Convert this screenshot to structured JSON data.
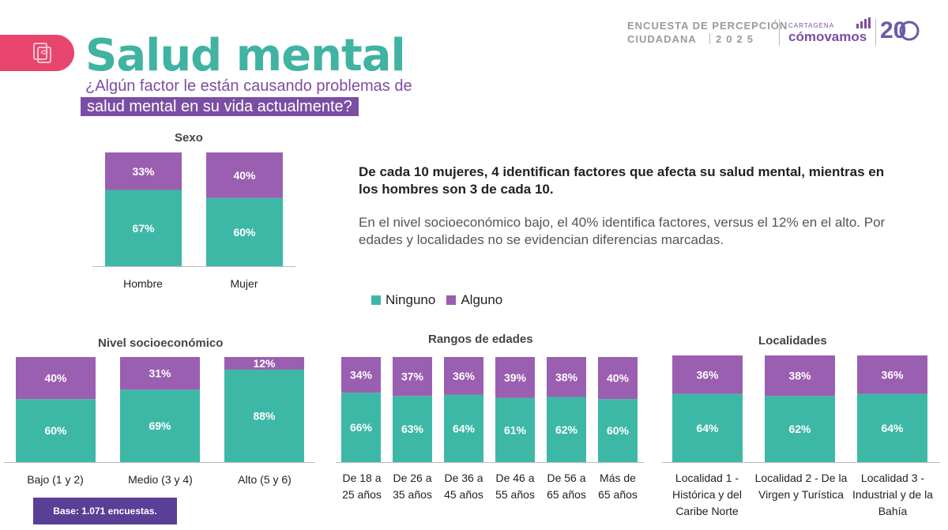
{
  "header": {
    "title": "Salud mental",
    "question_line1": "¿Algún factor le están causando problemas de",
    "question_line2": "salud mental en su vida actualmente?",
    "survey_line1": "ENCUESTA DE PERCEPCIÓN",
    "survey_line2": "CIUDADANA",
    "survey_year": "2025",
    "brand_small": "CARTAGENA",
    "brand_big": "cómovamos",
    "brand_years": "20",
    "icon": "brain-document-icon"
  },
  "colors": {
    "ninguno": "#3db8a7",
    "alguno": "#9b5fb1",
    "accent_pink": "#e8456e",
    "accent_purple": "#7b4ea3",
    "title_teal": "#40b3a2"
  },
  "insight": {
    "bold": "De cada 10 mujeres, 4 identifican factores que afecta su salud mental, mientras en los hombres son 3 de cada 10.",
    "text": "En el nivel socioeconómico bajo, el 40% identifica factores, versus el 12% en el alto. Por edades y localidades no se evidencian diferencias marcadas."
  },
  "legend": {
    "ninguno": "Ninguno",
    "alguno": "Alguno"
  },
  "base_note": "Base: 1.071 encuestas.",
  "chart_data": [
    {
      "type": "bar",
      "stacked": true,
      "title": "Sexo",
      "categories": [
        "Hombre",
        "Mujer"
      ],
      "series": [
        {
          "name": "Ninguno",
          "values": [
            67,
            60
          ]
        },
        {
          "name": "Alguno",
          "values": [
            33,
            40
          ]
        }
      ],
      "ylim": [
        0,
        100
      ]
    },
    {
      "type": "bar",
      "stacked": true,
      "title": "Nivel socioeconómico",
      "categories": [
        "Bajo (1 y 2)",
        "Medio (3 y 4)",
        "Alto (5 y 6)"
      ],
      "series": [
        {
          "name": "Ninguno",
          "values": [
            60,
            69,
            88
          ]
        },
        {
          "name": "Alguno",
          "values": [
            40,
            31,
            12
          ]
        }
      ],
      "ylim": [
        0,
        100
      ]
    },
    {
      "type": "bar",
      "stacked": true,
      "title": "Rangos de edades",
      "categories": [
        "De 18 a 25 años",
        "De 26 a 35 años",
        "De 36 a 45 años",
        "De 46 a 55 años",
        "De 56 a 65 años",
        "Más de 65 años"
      ],
      "series": [
        {
          "name": "Ninguno",
          "values": [
            66,
            63,
            64,
            61,
            62,
            60
          ]
        },
        {
          "name": "Alguno",
          "values": [
            34,
            37,
            36,
            39,
            38,
            40
          ]
        }
      ],
      "ylim": [
        0,
        100
      ]
    },
    {
      "type": "bar",
      "stacked": true,
      "title": "Localidades",
      "categories": [
        "Localidad 1 - Histórica y del Caribe Norte",
        "Localidad 2 - De la Virgen y Turística",
        "Localidad 3 - Industrial y de la Bahía"
      ],
      "series": [
        {
          "name": "Ninguno",
          "values": [
            64,
            62,
            64
          ]
        },
        {
          "name": "Alguno",
          "values": [
            36,
            38,
            36
          ]
        }
      ],
      "ylim": [
        0,
        100
      ]
    }
  ]
}
